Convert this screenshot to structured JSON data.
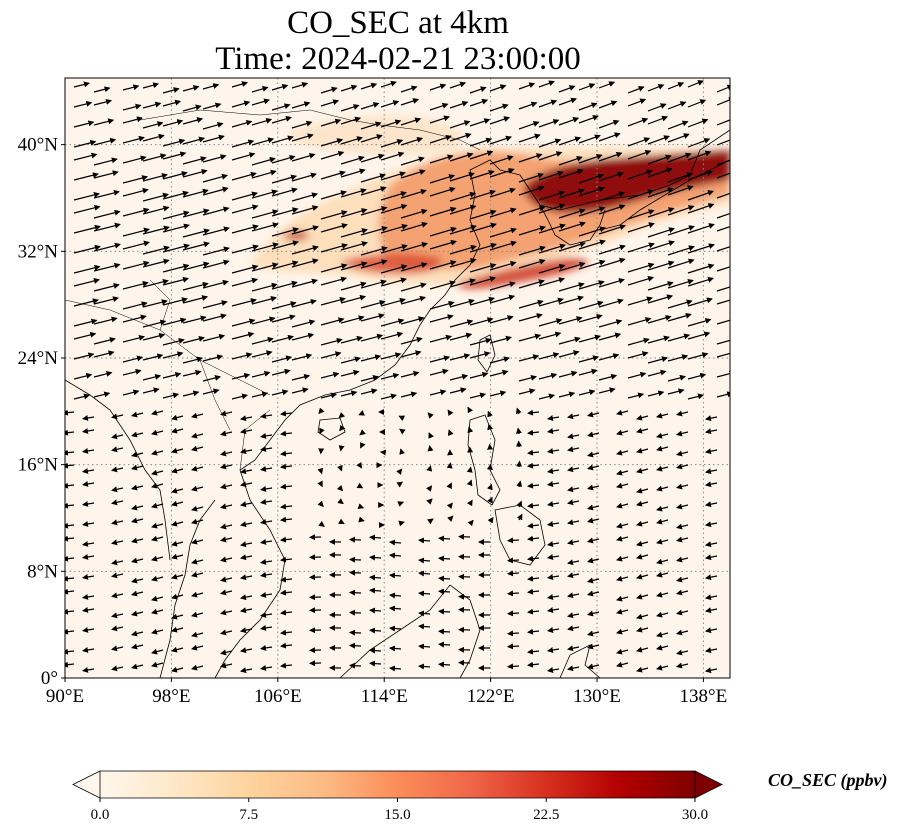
{
  "title": {
    "line1": "CO_SEC at 4km",
    "line2": "Time: 2024-02-21 23:00:00"
  },
  "map": {
    "lon_range": [
      90,
      140
    ],
    "lat_range": [
      0,
      45
    ],
    "lon_ticks": [
      {
        "value": 90,
        "label": "90°E"
      },
      {
        "value": 98,
        "label": "98°E"
      },
      {
        "value": 106,
        "label": "106°E"
      },
      {
        "value": 114,
        "label": "114°E"
      },
      {
        "value": 122,
        "label": "122°E"
      },
      {
        "value": 130,
        "label": "130°E"
      },
      {
        "value": 138,
        "label": "138°E"
      }
    ],
    "lat_ticks": [
      {
        "value": 0,
        "label": "0°"
      },
      {
        "value": 8,
        "label": "8°N"
      },
      {
        "value": 16,
        "label": "16°N"
      },
      {
        "value": 24,
        "label": "24°N"
      },
      {
        "value": 32,
        "label": "32°N"
      },
      {
        "value": 40,
        "label": "40°N"
      }
    ],
    "gridlines": "dotted",
    "background_color": "#fff5eb",
    "coastline_color": "#000000",
    "vector_color": "#000000"
  },
  "colorbar": {
    "label": "CO_SEC (ppbv)",
    "min": 0.0,
    "max": 30.0,
    "extend": "both",
    "colormap": "OrRd",
    "colors": [
      "#fff7ec",
      "#fee8c8",
      "#fdd49e",
      "#fdbb84",
      "#fc8d59",
      "#ef6548",
      "#d7301f",
      "#b30000",
      "#7f0000"
    ],
    "ticks": [
      {
        "value": 0.0,
        "label": "0.0"
      },
      {
        "value": 7.5,
        "label": "7.5"
      },
      {
        "value": 15.0,
        "label": "15.0"
      },
      {
        "value": 22.5,
        "label": "22.5"
      },
      {
        "value": 30.0,
        "label": "30.0"
      }
    ]
  }
}
